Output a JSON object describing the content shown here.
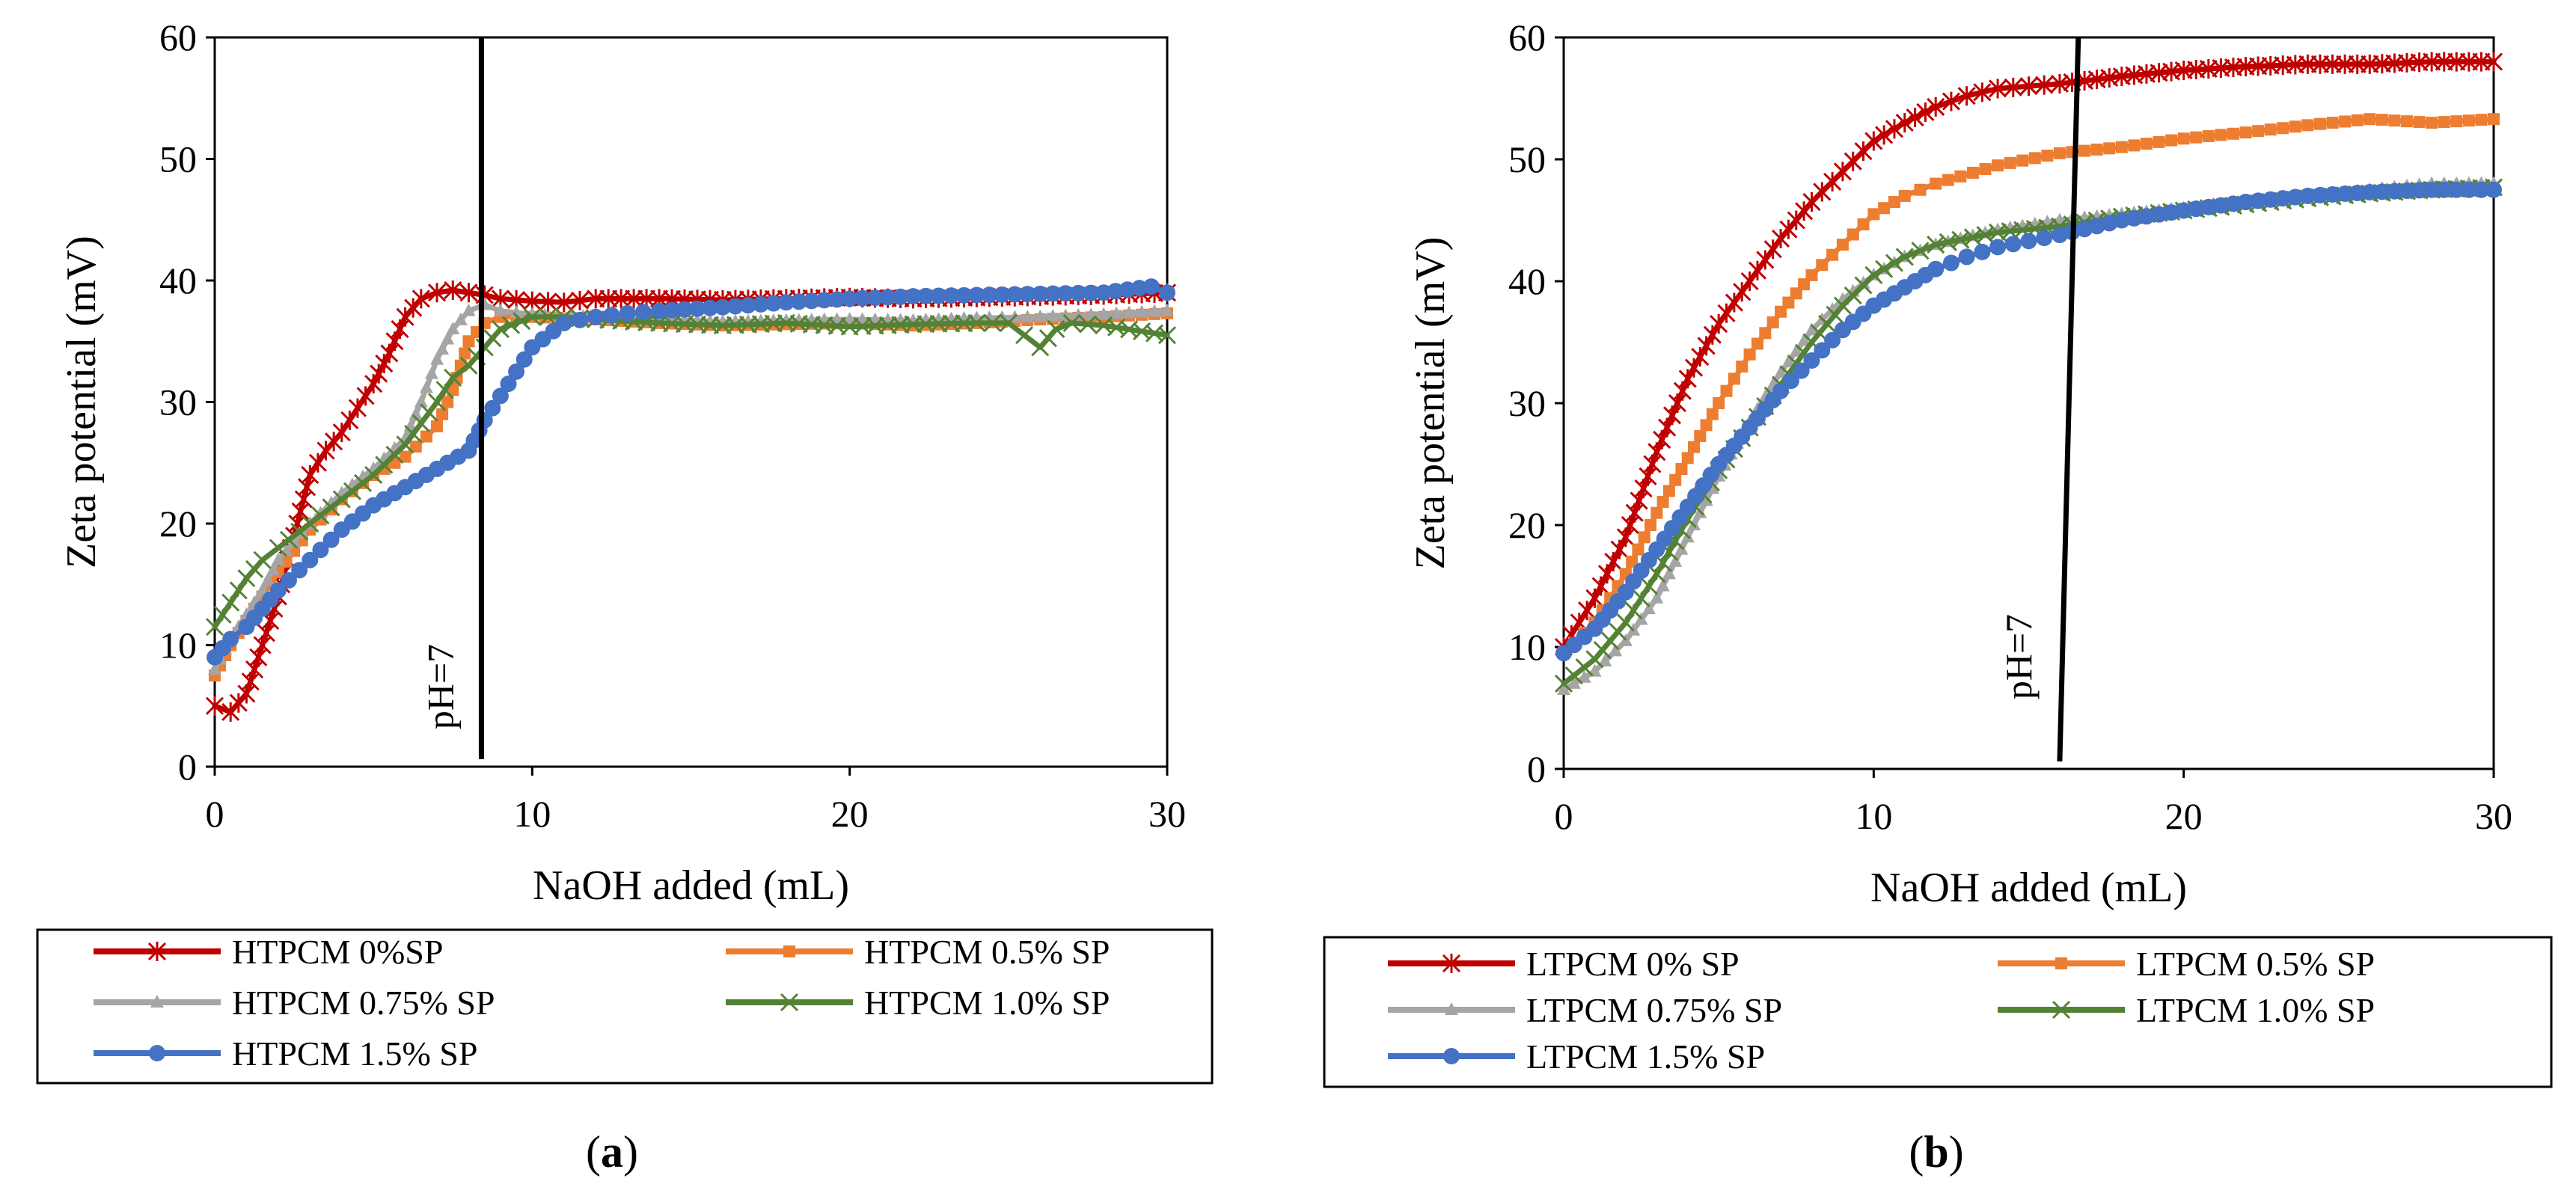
{
  "chart_data": [
    {
      "id": "a",
      "type": "line",
      "panel_label_prefix": "(",
      "panel_label": "a",
      "panel_label_suffix": ")",
      "xlabel": "NaOH added (mL)",
      "ylabel": "Zeta potential (mV)",
      "xlim": [
        0,
        30
      ],
      "ylim": [
        0,
        60
      ],
      "xticks": [
        0,
        10,
        20,
        30
      ],
      "yticks": [
        0,
        10,
        20,
        30,
        40,
        50,
        60
      ],
      "annotation": "pH=7",
      "vline": [
        8.4,
        8.4
      ],
      "legend_position": "below",
      "series": [
        {
          "name": "HTPCM 0%SP",
          "color": "#c00000",
          "marker": "star",
          "x": [
            0,
            0.5,
            1,
            1.5,
            2,
            2.5,
            3,
            3.5,
            4,
            4.5,
            5,
            5.5,
            6,
            6.5,
            7,
            7.5,
            8,
            8.5,
            9,
            10,
            11,
            12,
            14,
            16,
            18,
            20,
            22,
            24,
            26,
            28,
            30
          ],
          "y": [
            5,
            4.5,
            6,
            10,
            14,
            19,
            24,
            26,
            27.5,
            29.5,
            31.5,
            34,
            37,
            38.5,
            39,
            39.2,
            39,
            38.8,
            38.5,
            38.3,
            38.2,
            38.5,
            38.5,
            38.4,
            38.5,
            38.6,
            38.5,
            38.6,
            38.7,
            38.8,
            39
          ]
        },
        {
          "name": "HTPCM 0.5% SP",
          "color": "#ed7d31",
          "marker": "square",
          "x": [
            0,
            0.5,
            1,
            1.5,
            2,
            3,
            4,
            5,
            6,
            7,
            7.5,
            8,
            8.5,
            9,
            10,
            12,
            14,
            16,
            18,
            20,
            22,
            24,
            26,
            28,
            30
          ],
          "y": [
            7.5,
            10,
            12,
            14,
            16,
            19.5,
            22,
            24,
            25.5,
            28,
            31,
            35,
            36.5,
            37,
            37,
            36.8,
            36.5,
            36.3,
            36.4,
            36.5,
            36.3,
            36.5,
            36.8,
            37,
            37.3
          ]
        },
        {
          "name": "HTPCM 0.75% SP",
          "color": "#a5a5a5",
          "marker": "triangle",
          "x": [
            0,
            0.5,
            1,
            1.5,
            2,
            3,
            4,
            5,
            6,
            6.5,
            7,
            7.5,
            8,
            8.5,
            9,
            10,
            12,
            14,
            16,
            18,
            20,
            22,
            24,
            26,
            28,
            30
          ],
          "y": [
            8,
            10.5,
            12.5,
            14.5,
            17,
            20,
            22.5,
            24.5,
            27,
            30,
            33.5,
            36,
            37.5,
            38,
            37.5,
            37.2,
            37,
            36.8,
            36.6,
            36.7,
            36.8,
            36.7,
            36.9,
            37,
            37.2,
            37.5
          ]
        },
        {
          "name": "HTPCM 1.0% SP",
          "color": "#548235",
          "marker": "x",
          "x": [
            0,
            0.5,
            1,
            1.5,
            2,
            3,
            4,
            5,
            6,
            7,
            7.5,
            8,
            8.5,
            9,
            10,
            11,
            12,
            14,
            16,
            18,
            20,
            22,
            24,
            25,
            25.5,
            26,
            26.5,
            27,
            28,
            30
          ],
          "y": [
            11.5,
            13.5,
            15.5,
            17,
            18,
            20,
            22,
            24,
            26.5,
            30,
            32,
            33,
            34.5,
            36,
            37,
            37,
            36.8,
            36.5,
            36.3,
            36.5,
            36.2,
            36.4,
            36.5,
            36.5,
            35.5,
            34.5,
            36,
            36.5,
            36.3,
            35.5
          ]
        },
        {
          "name": "HTPCM 1.5% SP",
          "color": "#4472c4",
          "marker": "circle",
          "x": [
            0,
            0.5,
            1,
            1.5,
            2,
            3,
            4,
            5,
            6,
            7,
            8,
            8.5,
            9,
            9.5,
            10,
            11,
            12,
            13,
            14,
            16,
            18,
            20,
            22,
            24,
            26,
            28,
            29.5,
            30
          ],
          "y": [
            9,
            10.5,
            11.5,
            13,
            14.5,
            17,
            19.5,
            21.5,
            23,
            24.5,
            26,
            28.5,
            30.5,
            32.5,
            34.5,
            36.5,
            37,
            37.3,
            37.5,
            37.8,
            38.2,
            38.5,
            38.7,
            38.8,
            38.9,
            39,
            39.5,
            39
          ]
        }
      ]
    },
    {
      "id": "b",
      "type": "line",
      "panel_label_prefix": "(",
      "panel_label": "b",
      "panel_label_suffix": ")",
      "xlabel": "NaOH added (mL)",
      "ylabel": "Zeta  potential (mV)",
      "xlim": [
        0,
        30
      ],
      "ylim": [
        0,
        60
      ],
      "xticks": [
        0,
        10,
        20,
        30
      ],
      "yticks": [
        0,
        10,
        20,
        30,
        40,
        50,
        60
      ],
      "annotation": "pH=7",
      "vline": [
        16.6,
        16.0
      ],
      "legend_position": "below",
      "series": [
        {
          "name": "LTPCM 0% SP",
          "color": "#c00000",
          "marker": "star",
          "x": [
            0,
            1,
            2,
            3,
            4,
            5,
            6,
            7,
            8,
            9,
            10,
            11,
            12,
            13,
            14,
            15,
            16,
            18,
            20,
            22,
            24,
            26,
            28,
            30
          ],
          "y": [
            10,
            14,
            19,
            26,
            32,
            36.5,
            40,
            43.5,
            46.5,
            49,
            51.5,
            53,
            54.3,
            55.2,
            55.8,
            56,
            56.2,
            56.8,
            57.3,
            57.6,
            57.8,
            57.8,
            58,
            58
          ]
        },
        {
          "name": "LTPCM 0.5% SP",
          "color": "#ed7d31",
          "marker": "square",
          "x": [
            0,
            1,
            2,
            3,
            4,
            5,
            6,
            7,
            8,
            9,
            10,
            11,
            12,
            14,
            16,
            18,
            20,
            22,
            24,
            26,
            28,
            30
          ],
          "y": [
            9.5,
            12,
            16,
            21,
            25.5,
            30,
            34,
            37.5,
            40.5,
            43,
            45.5,
            47,
            48,
            49.5,
            50.5,
            51,
            51.7,
            52.2,
            52.8,
            53.3,
            53,
            53.3
          ]
        },
        {
          "name": "LTPCM 0.75% SP",
          "color": "#a5a5a5",
          "marker": "triangle",
          "x": [
            0,
            1,
            2,
            3,
            4,
            5,
            6,
            7,
            8,
            9,
            10,
            11,
            12,
            14,
            16,
            18,
            20,
            22,
            24,
            26,
            28,
            30
          ],
          "y": [
            6.5,
            8,
            10.5,
            14,
            19,
            24,
            28.5,
            32.5,
            36,
            38.5,
            40.5,
            42,
            43,
            44.2,
            45,
            45.5,
            46,
            46.5,
            47,
            47.5,
            48,
            48
          ]
        },
        {
          "name": "LTPCM 1.0% SP",
          "color": "#548235",
          "marker": "x",
          "x": [
            0,
            1,
            2,
            3,
            4,
            5,
            6,
            7,
            8,
            9,
            10,
            11,
            12,
            14,
            16,
            18,
            20,
            22,
            24,
            26,
            28,
            30
          ],
          "y": [
            7,
            9,
            12,
            16,
            20.5,
            24.5,
            28,
            31.5,
            35,
            38,
            40.5,
            42,
            43,
            44,
            44.5,
            45.3,
            45.8,
            46.3,
            46.8,
            47.2,
            47.5,
            47.7
          ]
        },
        {
          "name": "LTPCM 1.5% SP",
          "color": "#4472c4",
          "marker": "circle",
          "x": [
            0,
            1,
            2,
            3,
            4,
            5,
            6,
            7,
            8,
            9,
            10,
            11,
            12,
            13,
            14,
            15,
            16,
            18,
            20,
            22,
            24,
            26,
            28,
            30
          ],
          "y": [
            9.5,
            11.5,
            14.5,
            18,
            21.5,
            25,
            28,
            31,
            33.5,
            36,
            38,
            39.5,
            41,
            42,
            42.8,
            43.3,
            43.8,
            45,
            45.8,
            46.5,
            47,
            47.3,
            47.5,
            47.5
          ]
        }
      ]
    }
  ]
}
